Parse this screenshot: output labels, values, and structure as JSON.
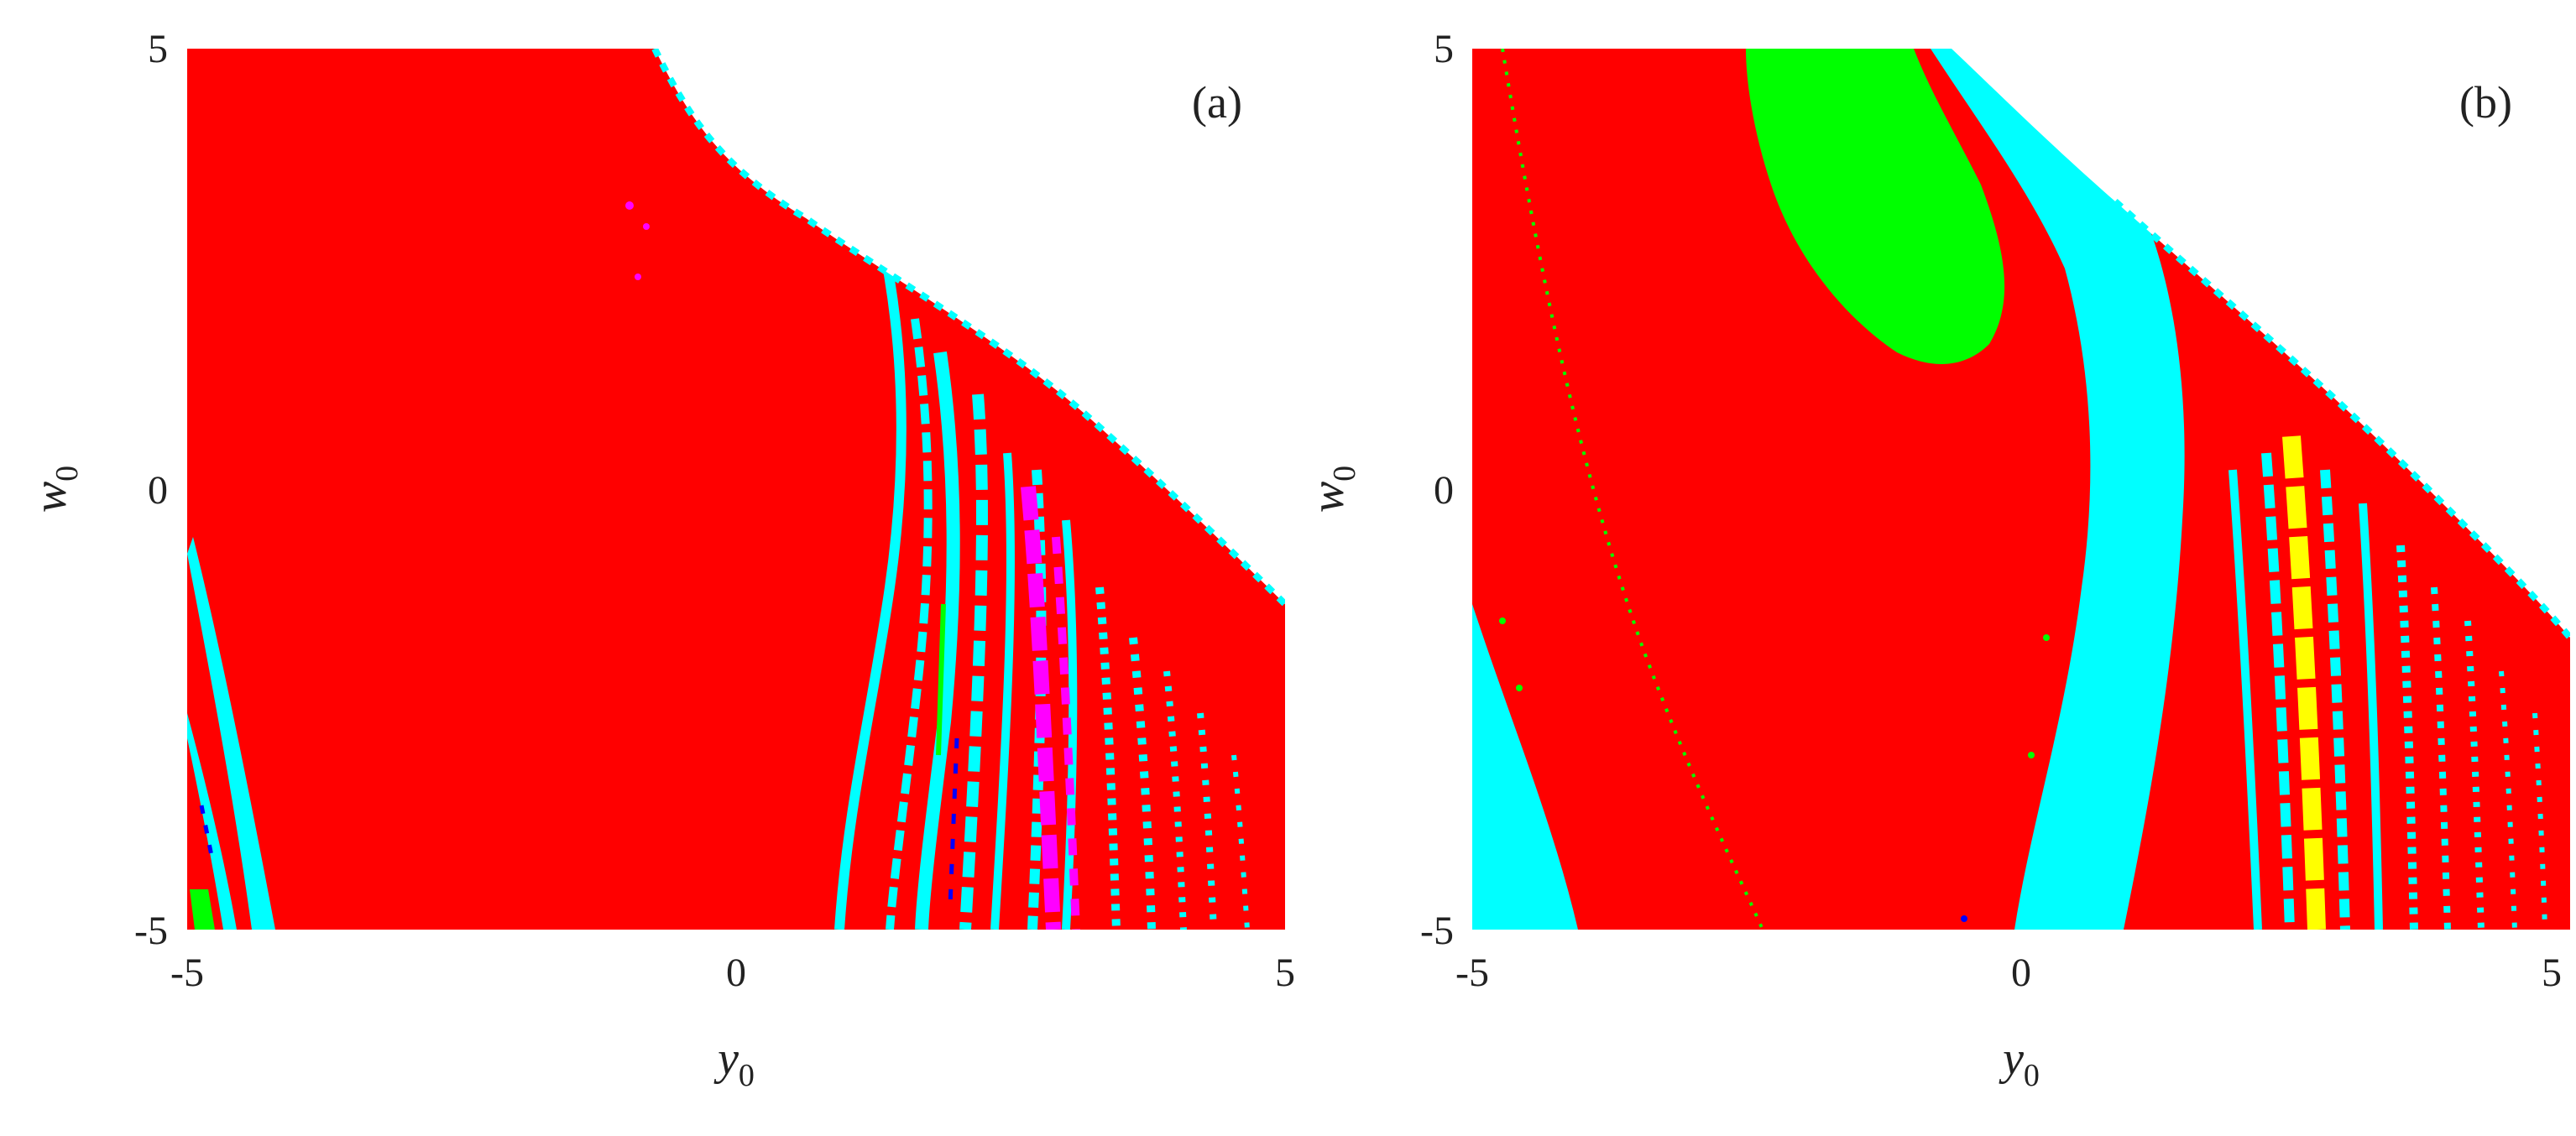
{
  "chart_data": [
    {
      "type": "heatmap",
      "panel_label": "(a)",
      "xlabel": "y",
      "xlabel_sub": "0",
      "ylabel": "w",
      "ylabel_sub": "0",
      "xlim": [
        -5,
        5
      ],
      "ylim": [
        -5,
        5
      ],
      "xticks": [
        "-5",
        "0",
        "5"
      ],
      "yticks": [
        "5",
        "0",
        "-5"
      ],
      "grid": false,
      "colors": {
        "background": "#ffffff",
        "red": "#ff0000",
        "cyan": "#00ffff",
        "magenta": "#ff00ff",
        "blue": "#0000ff",
        "green": "#00ff00"
      },
      "regions": [
        {
          "name": "undefined-region",
          "color": "white",
          "boundary": [
            [
              -0.8,
              5
            ],
            [
              0.8,
              3.4
            ],
            [
              2.0,
              2.0
            ],
            [
              3.2,
              0.6
            ],
            [
              4.2,
              -1.0
            ],
            [
              5,
              -2.1
            ],
            [
              5,
              5
            ]
          ]
        },
        {
          "name": "main-red-basin",
          "color": "red",
          "x_min": -5,
          "x_max": 1.1,
          "y_min": -5,
          "y_max": 5
        },
        {
          "name": "left-cyan-band",
          "color": "cyan",
          "points": [
            [
              -5,
              -0.4
            ],
            [
              -4.0,
              -4.9
            ]
          ]
        },
        {
          "name": "right-striated-bands",
          "color": "cyan",
          "x_min": 1.2,
          "x_max": 5,
          "y_min": -5,
          "y_max": 2.0
        },
        {
          "name": "magenta-streaks",
          "color": "magenta",
          "x_min": 2.6,
          "x_max": 3.3,
          "y_min": -5,
          "y_max": 0.2
        }
      ]
    },
    {
      "type": "heatmap",
      "panel_label": "(b)",
      "xlabel": "y",
      "xlabel_sub": "0",
      "ylabel": "w",
      "ylabel_sub": "0",
      "xlim": [
        -5,
        5
      ],
      "ylim": [
        -5,
        5
      ],
      "xticks": [
        "-5",
        "0",
        "5"
      ],
      "yticks": [
        "5",
        "0",
        "-5"
      ],
      "grid": false,
      "colors": {
        "background": "#ffffff",
        "red": "#ff0000",
        "cyan": "#00ffff",
        "green": "#00ff00",
        "yellow": "#ffff00"
      },
      "regions": [
        {
          "name": "undefined-region",
          "color": "white",
          "boundary": [
            [
              -0.6,
              5
            ],
            [
              0.2,
              4.1
            ],
            [
              1.5,
              3.0
            ],
            [
              3.0,
              1.2
            ],
            [
              4.3,
              -0.6
            ],
            [
              5,
              -1.9
            ],
            [
              5,
              5
            ]
          ]
        },
        {
          "name": "green-basin",
          "color": "green",
          "center": [
            -1.4,
            3.3
          ]
        },
        {
          "name": "left-cyan-band",
          "color": "cyan",
          "points": [
            [
              -5,
              -1.4
            ],
            [
              -4.1,
              -5
            ]
          ]
        },
        {
          "name": "central-cyan-band",
          "color": "cyan",
          "points": [
            [
              0.6,
              5
            ],
            [
              1.6,
              2.0
            ],
            [
              1.0,
              -5
            ]
          ]
        },
        {
          "name": "yellow-streak",
          "color": "yellow",
          "x_min": 2.3,
          "x_max": 2.9,
          "y_min": -5,
          "y_max": 1.0
        }
      ]
    }
  ]
}
